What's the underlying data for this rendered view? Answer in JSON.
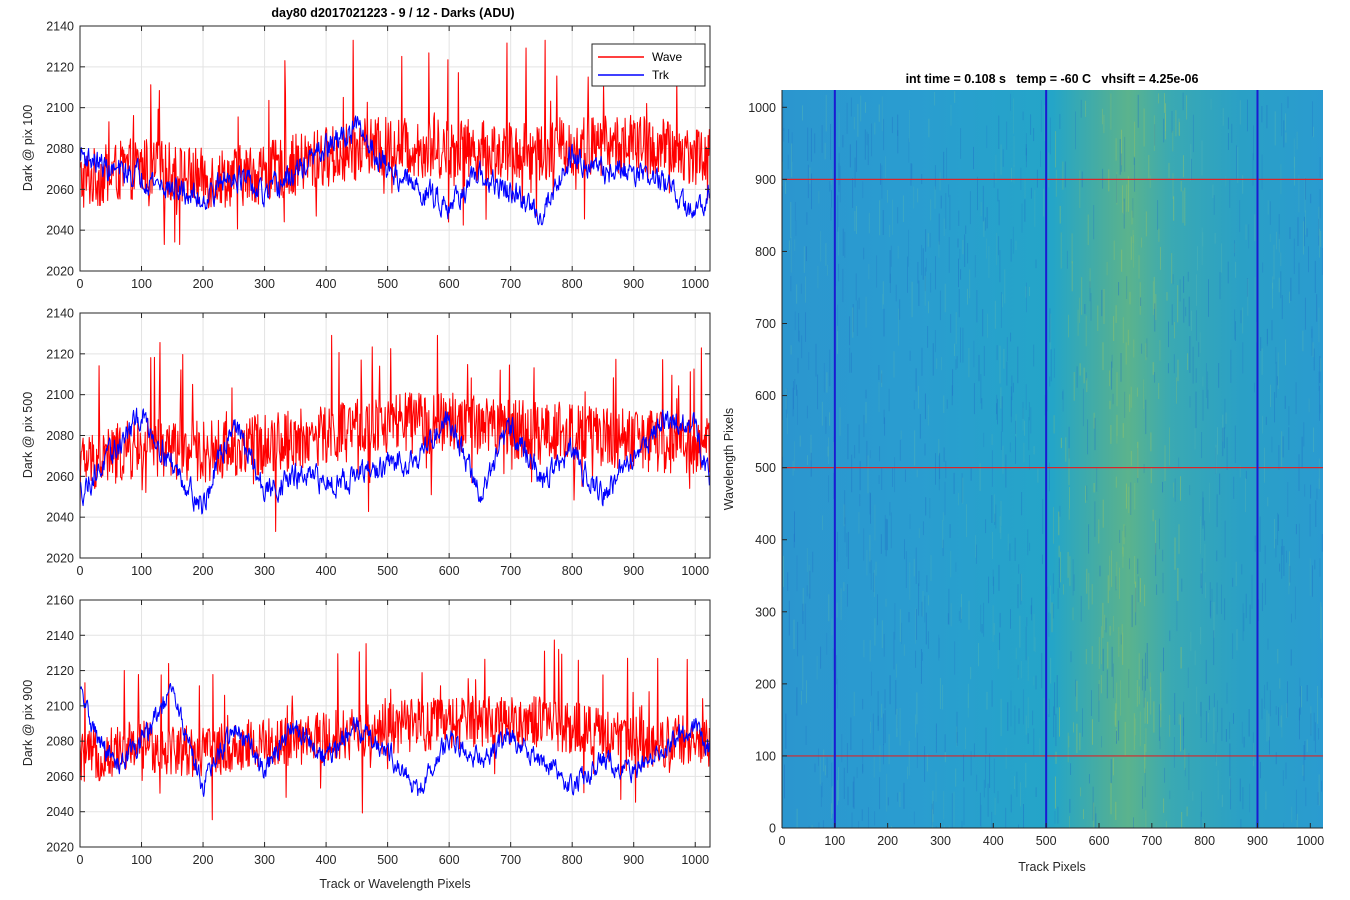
{
  "figure_title": "day80 d2017021223 - 9 / 12 - Darks (ADU)",
  "colors": {
    "wave": "#ff0000",
    "trk": "#0000ff",
    "grid": "#e3e3e3",
    "axis": "#262626",
    "marker_h": "#d8262a",
    "marker_v": "#1a1ad2"
  },
  "chart_data": [
    {
      "type": "line",
      "ylabel": "Dark @ pix 100",
      "xlabel": "",
      "xlim": [
        0,
        1024
      ],
      "ylim": [
        2020,
        2140
      ],
      "xticks": [
        0,
        100,
        200,
        300,
        400,
        500,
        600,
        700,
        800,
        900,
        1000
      ],
      "yticks": [
        2020,
        2040,
        2060,
        2080,
        2100,
        2120,
        2140
      ],
      "grid": true,
      "legend": "top-right",
      "series": [
        {
          "name": "Wave",
          "color": "#ff0000",
          "trend": [
            [
              0,
              2064
            ],
            [
              100,
              2071
            ],
            [
              200,
              2065
            ],
            [
              300,
              2068
            ],
            [
              400,
              2076
            ],
            [
              500,
              2081
            ],
            [
              600,
              2080
            ],
            [
              700,
              2078
            ],
            [
              800,
              2081
            ],
            [
              900,
              2082
            ],
            [
              1024,
              2076
            ]
          ],
          "approx_range": [
            2033,
            2133
          ]
        },
        {
          "name": "Trk",
          "color": "#0000ff",
          "trend": [
            [
              0,
              2078
            ],
            [
              50,
              2069
            ],
            [
              100,
              2067
            ],
            [
              150,
              2060
            ],
            [
              200,
              2055
            ],
            [
              250,
              2068
            ],
            [
              300,
              2056
            ],
            [
              350,
              2068
            ],
            [
              400,
              2080
            ],
            [
              450,
              2090
            ],
            [
              500,
              2070
            ],
            [
              550,
              2060
            ],
            [
              600,
              2053
            ],
            [
              650,
              2066
            ],
            [
              700,
              2058
            ],
            [
              750,
              2048
            ],
            [
              800,
              2078
            ],
            [
              850,
              2068
            ],
            [
              900,
              2070
            ],
            [
              950,
              2063
            ],
            [
              1000,
              2046
            ],
            [
              1024,
              2062
            ]
          ],
          "approx_range": [
            2024,
            2102
          ]
        }
      ]
    },
    {
      "type": "line",
      "ylabel": "Dark @ pix 500",
      "xlabel": "",
      "xlim": [
        0,
        1024
      ],
      "ylim": [
        2020,
        2140
      ],
      "xticks": [
        0,
        100,
        200,
        300,
        400,
        500,
        600,
        700,
        800,
        900,
        1000
      ],
      "yticks": [
        2020,
        2040,
        2060,
        2080,
        2100,
        2120,
        2140
      ],
      "grid": true,
      "series": [
        {
          "name": "Wave",
          "color": "#ff0000",
          "trend": [
            [
              0,
              2066
            ],
            [
              100,
              2074
            ],
            [
              200,
              2072
            ],
            [
              300,
              2076
            ],
            [
              400,
              2080
            ],
            [
              500,
              2086
            ],
            [
              600,
              2086
            ],
            [
              700,
              2083
            ],
            [
              800,
              2081
            ],
            [
              900,
              2078
            ],
            [
              1024,
              2074
            ]
          ],
          "approx_range": [
            2033,
            2129
          ]
        },
        {
          "name": "Trk",
          "color": "#0000ff",
          "trend": [
            [
              0,
              2052
            ],
            [
              50,
              2070
            ],
            [
              100,
              2090
            ],
            [
              150,
              2066
            ],
            [
              200,
              2045
            ],
            [
              250,
              2088
            ],
            [
              300,
              2052
            ],
            [
              350,
              2060
            ],
            [
              400,
              2057
            ],
            [
              450,
              2060
            ],
            [
              500,
              2065
            ],
            [
              550,
              2070
            ],
            [
              600,
              2090
            ],
            [
              650,
              2050
            ],
            [
              700,
              2085
            ],
            [
              750,
              2058
            ],
            [
              800,
              2072
            ],
            [
              850,
              2050
            ],
            [
              900,
              2070
            ],
            [
              950,
              2088
            ],
            [
              1000,
              2083
            ],
            [
              1024,
              2060
            ]
          ],
          "approx_range": [
            2030,
            2103
          ]
        }
      ]
    },
    {
      "type": "line",
      "ylabel": "Dark @ pix 900",
      "xlabel": "Track or Wavelength Pixels",
      "xlim": [
        0,
        1024
      ],
      "ylim": [
        2020,
        2160
      ],
      "xticks": [
        0,
        100,
        200,
        300,
        400,
        500,
        600,
        700,
        800,
        900,
        1000
      ],
      "yticks": [
        2020,
        2040,
        2060,
        2080,
        2100,
        2120,
        2140,
        2160
      ],
      "grid": true,
      "series": [
        {
          "name": "Wave",
          "color": "#ff0000",
          "trend": [
            [
              0,
              2070
            ],
            [
              100,
              2078
            ],
            [
              200,
              2074
            ],
            [
              300,
              2078
            ],
            [
              400,
              2082
            ],
            [
              500,
              2088
            ],
            [
              600,
              2090
            ],
            [
              700,
              2092
            ],
            [
              800,
              2088
            ],
            [
              900,
              2080
            ],
            [
              1024,
              2080
            ]
          ],
          "approx_range": [
            2033,
            2145
          ]
        },
        {
          "name": "Trk",
          "color": "#0000ff",
          "trend": [
            [
              0,
              2108
            ],
            [
              30,
              2080
            ],
            [
              60,
              2066
            ],
            [
              100,
              2080
            ],
            [
              150,
              2108
            ],
            [
              200,
              2055
            ],
            [
              250,
              2088
            ],
            [
              300,
              2065
            ],
            [
              350,
              2088
            ],
            [
              400,
              2070
            ],
            [
              450,
              2088
            ],
            [
              500,
              2075
            ],
            [
              550,
              2050
            ],
            [
              600,
              2082
            ],
            [
              650,
              2070
            ],
            [
              700,
              2082
            ],
            [
              750,
              2070
            ],
            [
              800,
              2054
            ],
            [
              850,
              2070
            ],
            [
              900,
              2062
            ],
            [
              950,
              2078
            ],
            [
              1000,
              2088
            ],
            [
              1024,
              2075
            ]
          ],
          "approx_range": [
            2034,
            2116
          ]
        }
      ]
    },
    {
      "type": "heatmap",
      "title": "int time = 0.108 s   temp = -60 C   vhsift = 4.25e-06",
      "xlabel": "Track Pixels",
      "ylabel": "Wavelength Pixels",
      "xlim": [
        0,
        1024
      ],
      "ylim": [
        0,
        1024
      ],
      "xticks": [
        0,
        100,
        200,
        300,
        400,
        500,
        600,
        700,
        800,
        900,
        1000
      ],
      "yticks": [
        0,
        100,
        200,
        300,
        400,
        500,
        600,
        700,
        800,
        900,
        1000
      ],
      "colormap": "parula",
      "base_color": "#2a9fd0",
      "bright_band_center_x": 640,
      "bright_band_color": "#8cbf6a",
      "vertical_markers": [
        100,
        500,
        900
      ],
      "horizontal_markers": [
        100,
        500,
        900
      ]
    }
  ]
}
